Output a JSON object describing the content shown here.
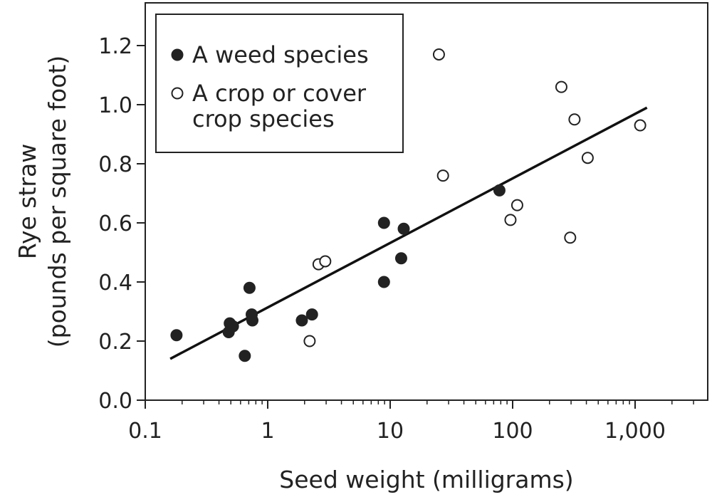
{
  "chart_data": {
    "type": "scatter",
    "title": "",
    "xlabel": "Seed weight (milligrams)",
    "ylabel_lines": [
      "Rye straw",
      "(pounds per square foot)"
    ],
    "x_scale": "log",
    "xlim": [
      0.1,
      5000
    ],
    "ylim": [
      0,
      1.35
    ],
    "x_ticks": [
      {
        "value": 0.1,
        "label": "0.1"
      },
      {
        "value": 1,
        "label": "1"
      },
      {
        "value": 10,
        "label": "10"
      },
      {
        "value": 100,
        "label": "100"
      },
      {
        "value": 1000,
        "label": "1,000"
      }
    ],
    "y_ticks": [
      {
        "value": 0.0,
        "label": "0.0"
      },
      {
        "value": 0.2,
        "label": "0.2"
      },
      {
        "value": 0.4,
        "label": "0.4"
      },
      {
        "value": 0.6,
        "label": "0.6"
      },
      {
        "value": 0.8,
        "label": "0.8"
      },
      {
        "value": 1.0,
        "label": "1.0"
      },
      {
        "value": 1.2,
        "label": "1.2"
      }
    ],
    "grid": false,
    "legend_position": "top-left",
    "series": [
      {
        "name": "A weed species",
        "marker": "filled-circle",
        "color": "#222222",
        "points": [
          [
            0.18,
            0.22
          ],
          [
            0.48,
            0.23
          ],
          [
            0.49,
            0.26
          ],
          [
            0.52,
            0.25
          ],
          [
            0.65,
            0.15
          ],
          [
            0.71,
            0.38
          ],
          [
            0.74,
            0.29
          ],
          [
            0.75,
            0.27
          ],
          [
            1.9,
            0.27
          ],
          [
            2.3,
            0.29
          ],
          [
            8.9,
            0.6
          ],
          [
            8.9,
            0.4
          ],
          [
            12.3,
            0.48
          ],
          [
            12.9,
            0.58
          ],
          [
            78,
            0.71
          ]
        ]
      },
      {
        "name": "A crop or cover crop species",
        "name_lines": [
          "A crop or cover",
          "crop species"
        ],
        "marker": "open-circle",
        "color": "#222222",
        "points": [
          [
            2.2,
            0.2
          ],
          [
            2.6,
            0.46
          ],
          [
            2.95,
            0.47
          ],
          [
            25,
            1.17
          ],
          [
            27,
            0.76
          ],
          [
            96,
            0.61
          ],
          [
            109,
            0.66
          ],
          [
            250,
            1.06
          ],
          [
            295,
            0.55
          ],
          [
            320,
            0.95
          ],
          [
            410,
            0.82
          ],
          [
            1100,
            0.93
          ]
        ]
      }
    ],
    "trendline": {
      "type": "linear-on-log-x",
      "from": [
        0.16,
        0.14
      ],
      "to": [
        1250,
        0.99
      ],
      "color": "#111111"
    }
  }
}
